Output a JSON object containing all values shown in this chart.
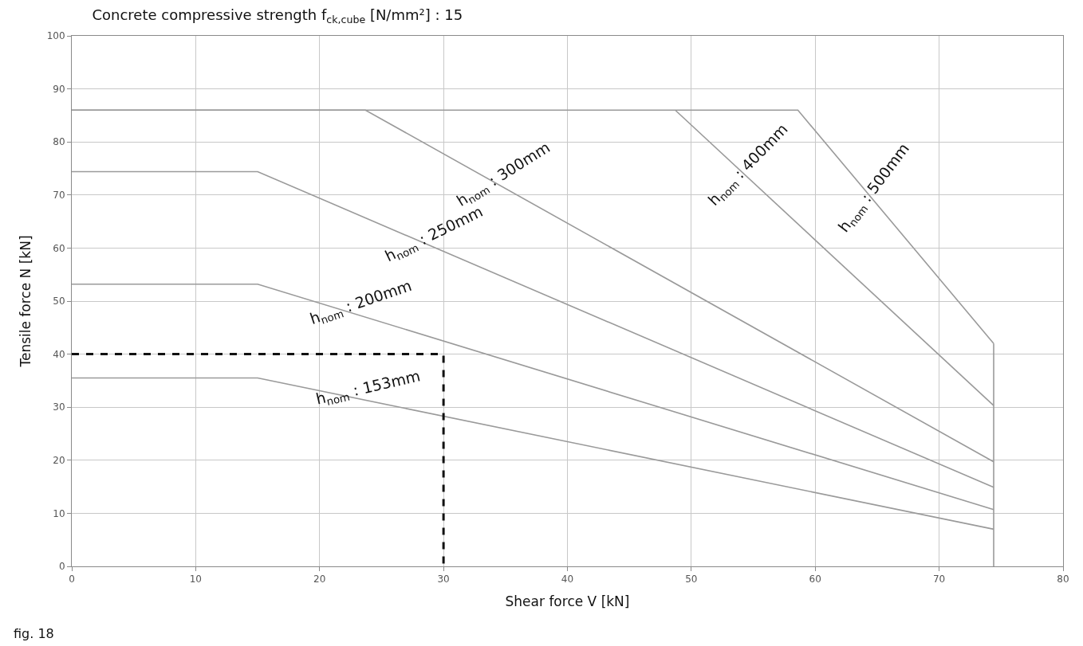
{
  "chart_data": {
    "type": "line",
    "title": "Concrete compressive strength f$_{ck,cube}$ [N/mm²] : 15",
    "xlabel": "Shear force V [kN]",
    "ylabel": "Tensile force N [kN]",
    "xlim": [
      0,
      80
    ],
    "ylim": [
      0,
      100
    ],
    "xticks": [
      0,
      10,
      20,
      30,
      40,
      50,
      60,
      70,
      80
    ],
    "yticks": [
      0,
      10,
      20,
      30,
      40,
      50,
      60,
      70,
      80,
      90,
      100
    ],
    "grid": true,
    "legend": false,
    "marker": "none",
    "series": [
      {
        "name": "h$_{nom}$ : 153mm",
        "color": "#9a9a9a",
        "x": [
          0,
          15,
          74.4
        ],
        "values": [
          35.5,
          35.5,
          7
        ]
      },
      {
        "name": "h$_{nom}$ : 200mm",
        "color": "#9a9a9a",
        "x": [
          0,
          15,
          74.4
        ],
        "values": [
          53.2,
          53.2,
          10.7
        ]
      },
      {
        "name": "h$_{nom}$ : 250mm",
        "color": "#9a9a9a",
        "x": [
          0,
          15,
          74.4
        ],
        "values": [
          74.4,
          74.4,
          14.9
        ]
      },
      {
        "name": "h$_{nom}$ : 300mm",
        "color": "#9a9a9a",
        "x": [
          0,
          23.7,
          74.4
        ],
        "values": [
          86,
          86,
          19.7
        ]
      },
      {
        "name": "h$_{nom}$ : 400mm",
        "color": "#9a9a9a",
        "x": [
          48.7,
          74.4
        ],
        "values": [
          86,
          30.3
        ]
      },
      {
        "name": "h$_{nom}$ : 500mm",
        "color": "#9a9a9a",
        "x": [
          0,
          58.6,
          74.4
        ],
        "values": [
          86,
          86,
          42
        ]
      },
      {
        "color": "#9a9a9a",
        "x": [
          74.4,
          74.4
        ],
        "values": [
          0,
          42
        ]
      },
      {
        "color": "#111111",
        "line_style": "dashed",
        "x": [
          0,
          30,
          30
        ],
        "values": [
          40,
          40,
          0
        ]
      }
    ],
    "annotations": [
      "fig. 18"
    ]
  }
}
